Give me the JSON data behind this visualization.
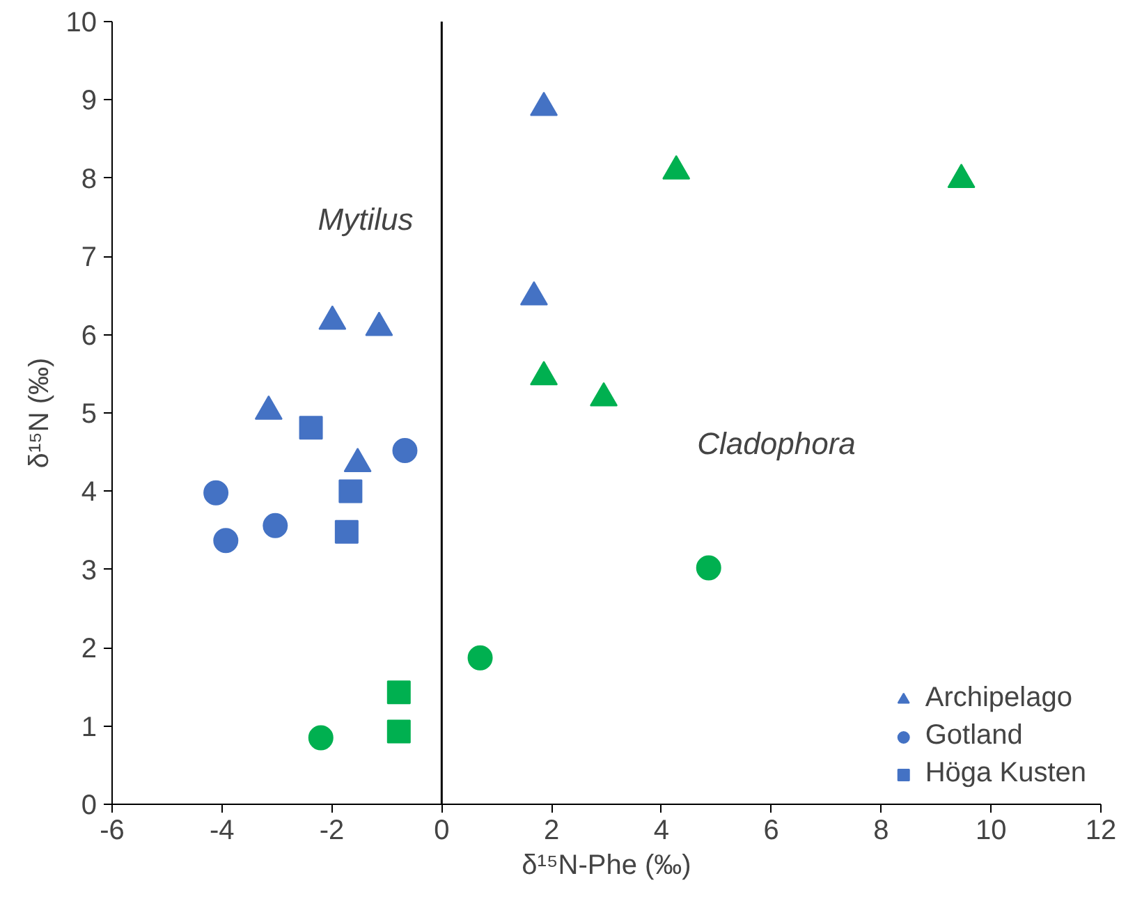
{
  "chart_data": {
    "type": "scatter",
    "xlabel": "δ¹⁵N-Phe (‰)",
    "ylabel": "δ¹⁵N (‰)",
    "xlim": [
      -6,
      12
    ],
    "ylim": [
      0,
      10
    ],
    "xticks": [
      -6,
      -4,
      -2,
      0,
      2,
      4,
      6,
      8,
      10,
      12
    ],
    "yticks": [
      0,
      1,
      2,
      3,
      4,
      5,
      6,
      7,
      8,
      9,
      10
    ],
    "grid": false,
    "legend": "bottom right",
    "ref_lines": [
      {
        "axis": "x",
        "value": 0,
        "color": "#000000"
      }
    ],
    "annotations": [
      "Mytilus",
      "Cladophora"
    ],
    "series": [
      {
        "name": "Archipelago",
        "marker": "triangle",
        "color": "#4472c4",
        "x": [
          1.86,
          1.68,
          -1.99,
          -1.14,
          -3.15,
          -1.53
        ],
        "values": [
          8.9,
          6.48,
          6.17,
          6.09,
          5.02,
          4.35
        ]
      },
      {
        "name": "Gotland",
        "marker": "circle",
        "color": "#4472c4",
        "x": [
          -4.11,
          -3.93,
          -3.03,
          -0.67
        ],
        "values": [
          3.98,
          3.37,
          3.56,
          4.52
        ]
      },
      {
        "name": "Höga Kusten",
        "marker": "square",
        "color": "#4472c4",
        "x": [
          -2.38,
          -1.66,
          -1.73
        ],
        "values": [
          4.81,
          4.0,
          3.48
        ]
      },
      {
        "marker": "triangle",
        "color": "#00b050",
        "x": [
          4.27,
          9.46,
          1.86,
          2.95
        ],
        "values": [
          8.09,
          7.98,
          5.46,
          5.19
        ]
      },
      {
        "marker": "circle",
        "color": "#00b050",
        "x": [
          4.86,
          0.7,
          -2.2
        ],
        "values": [
          3.02,
          1.87,
          0.85
        ]
      },
      {
        "marker": "square",
        "color": "#00b050",
        "x": [
          -0.78,
          -0.78
        ],
        "values": [
          1.43,
          0.93
        ]
      }
    ]
  }
}
